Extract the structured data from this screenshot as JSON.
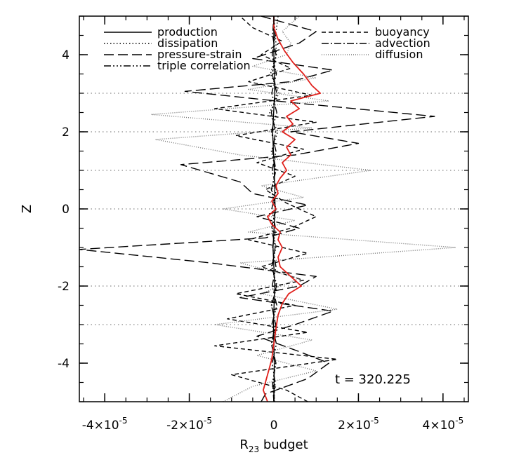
{
  "chart_data": {
    "type": "line",
    "xlabel": "R",
    "xlabel_sub": "23",
    "xlabel_rest": " budget",
    "ylabel": "Z",
    "xlim": [
      -4.6e-05,
      4.6e-05
    ],
    "ylim": [
      -5,
      5
    ],
    "x_ticks": [
      {
        "value": -4e-05,
        "base": "-4×10",
        "exp": "-5"
      },
      {
        "value": -2e-05,
        "base": "-2×10",
        "exp": "-5"
      },
      {
        "value": 0,
        "base": "0",
        "exp": ""
      },
      {
        "value": 2e-05,
        "base": "2×10",
        "exp": "-5"
      },
      {
        "value": 4e-05,
        "base": "4×10",
        "exp": "-5"
      }
    ],
    "y_ticks": [
      -4,
      -2,
      0,
      2,
      4
    ],
    "annotation": "t = 320.225",
    "reference_lines_z": [
      3,
      2,
      1,
      0,
      -2,
      -3
    ],
    "legend_position": "top",
    "series": [
      {
        "name": "production",
        "color": "#000000",
        "dash": "",
        "z": [
          -5,
          -4,
          -3,
          -2,
          -1,
          0,
          1,
          2,
          3,
          4,
          5
        ],
        "value": [
          0.0,
          1e-07,
          -1e-07,
          2e-07,
          -2e-07,
          3e-07,
          1e-07,
          -3e-07,
          2e-07,
          0.0,
          0.0
        ]
      },
      {
        "name": "dissipation",
        "color": "#000000",
        "dash": "1.5,3",
        "z": [
          -5,
          -4.5,
          -4,
          -3.5,
          -3,
          -2.5,
          -2,
          -1.5,
          -1,
          -0.5,
          0,
          0.5,
          1,
          1.5,
          2,
          2.5,
          3,
          3.5,
          4,
          4.5,
          5
        ],
        "value": [
          2e-07,
          -2e-07,
          4e-07,
          -4e-07,
          5e-07,
          -6e-07,
          8e-07,
          -6e-07,
          5e-07,
          -3e-07,
          5e-07,
          -5e-07,
          4e-07,
          -6e-07,
          9e-07,
          -1e-06,
          1.2e-06,
          -8e-07,
          6e-07,
          4e-07,
          1e-06
        ]
      },
      {
        "name": "pressure-strain",
        "color": "#000000",
        "dash": "14,6",
        "z": [
          -5,
          -4.8,
          -4.4,
          -4.0,
          -3.7,
          -3.3,
          -3.0,
          -2.65,
          -2.3,
          -2.0,
          -1.75,
          -1.4,
          -1.05,
          -0.75,
          -0.5,
          -0.2,
          0.1,
          0.4,
          0.7,
          1.15,
          1.4,
          1.7,
          2.0,
          2.4,
          2.75,
          3.05,
          3.3,
          3.6,
          3.9,
          4.3,
          4.6,
          5.0
        ],
        "value": [
          -3e-06,
          -2e-06,
          8e-06,
          1.3e-05,
          6e-06,
          -4e-06,
          5e-06,
          1.4e-05,
          -8e-06,
          6e-06,
          1e-05,
          -1.5e-05,
          -4.6e-05,
          -2e-06,
          6e-06,
          -4e-06,
          8e-06,
          -5e-06,
          -8e-06,
          -2.2e-05,
          5e-06,
          2e-05,
          4e-06,
          3.8e-05,
          5e-06,
          -2.1e-05,
          4e-06,
          1.4e-05,
          -5e-06,
          6e-06,
          1e-05,
          -3e-06
        ]
      },
      {
        "name": "triple correlation",
        "color": "#000000",
        "dash": "10,3,2,3,2,3,2,3",
        "z": [
          -5,
          -4.5,
          -4,
          -3.5,
          -3,
          -2.5,
          -2,
          -1.5,
          -1,
          -0.5,
          0,
          0.5,
          1,
          1.5,
          2,
          2.5,
          3,
          3.5,
          4,
          4.5,
          5
        ],
        "value": [
          0.0,
          3e-07,
          -4e-07,
          6e-07,
          -5e-07,
          7e-07,
          -4e-07,
          5e-07,
          -3e-07,
          4e-07,
          -5e-07,
          6e-07,
          -4e-07,
          5e-07,
          -6e-07,
          7e-07,
          -5e-07,
          6e-07,
          -4e-07,
          3e-07,
          0.0
        ]
      },
      {
        "name": "buoyancy",
        "color": "#000000",
        "dash": "6,4",
        "z": [
          -5,
          -4.7,
          -4.3,
          -3.9,
          -3.55,
          -3.2,
          -2.85,
          -2.5,
          -2.2,
          -1.85,
          -1.5,
          -1.15,
          -0.8,
          -0.5,
          -0.2,
          0.15,
          0.5,
          0.85,
          1.2,
          1.55,
          1.9,
          2.25,
          2.6,
          2.95,
          3.3,
          3.65,
          4.0,
          4.35,
          4.7,
          5.0
        ],
        "value": [
          8e-06,
          3e-06,
          -1e-05,
          1.5e-05,
          -1.4e-05,
          8e-06,
          -1.1e-05,
          5e-06,
          -9e-06,
          7e-06,
          -3e-06,
          8e-06,
          -6e-06,
          4e-06,
          1e-05,
          3e-06,
          -2e-06,
          5e-06,
          -4e-06,
          7e-06,
          -9e-06,
          1e-05,
          -1.4e-05,
          9e-06,
          -6e-06,
          4e-06,
          -3e-06,
          2e-06,
          -5e-06,
          -8e-06
        ]
      },
      {
        "name": "advection",
        "color": "#000000",
        "dash": "10,3,2,3",
        "z": [
          -5,
          -4.5,
          -4,
          -3.5,
          -3,
          -2.5,
          -2,
          -1.5,
          -1,
          -0.5,
          0,
          0.5,
          1,
          1.5,
          2,
          2.5,
          3,
          3.5,
          4,
          4.5,
          5
        ],
        "value": [
          0.0,
          -3e-07,
          5e-07,
          -6e-07,
          4e-07,
          -5e-07,
          6e-07,
          -4e-07,
          3e-07,
          -5e-07,
          4e-07,
          -6e-07,
          5e-07,
          -3e-07,
          4e-07,
          -6e-07,
          7e-07,
          -4e-07,
          5e-07,
          -3e-07,
          0.0
        ]
      },
      {
        "name": "diffusion",
        "color": "#777777",
        "dash": "1,2",
        "z": [
          -5,
          -4.6,
          -4.2,
          -3.8,
          -3.4,
          -3.0,
          -2.6,
          -2.2,
          -1.8,
          -1.4,
          -1.0,
          -0.6,
          -0.3,
          0.0,
          0.3,
          0.6,
          1.0,
          1.4,
          1.8,
          2.1,
          2.45,
          2.8,
          3.1,
          3.4,
          3.7,
          4.0,
          4.3,
          4.6,
          5.0
        ],
        "value": [
          -1.2e-05,
          -5e-06,
          1e-05,
          -4e-06,
          9e-06,
          -1.4e-05,
          1.5e-05,
          -3e-06,
          6e-06,
          -8e-06,
          4.3e-05,
          -6e-06,
          5e-06,
          -1.2e-05,
          7e-06,
          -3e-06,
          2.3e-05,
          -8e-06,
          -2.8e-05,
          9e-06,
          -2.9e-05,
          1.3e-05,
          -6e-06,
          1e-05,
          -5e-06,
          3e-06,
          4e-06,
          2e-06,
          6e-06
        ]
      },
      {
        "name": "",
        "color": "#e0201b",
        "dash": "",
        "z": [
          -5,
          -4.7,
          -4.3,
          -3.9,
          -3.5,
          -3.1,
          -2.75,
          -2.45,
          -2.2,
          -2.0,
          -1.75,
          -1.5,
          -1.25,
          -1.0,
          -0.8,
          -0.6,
          -0.4,
          -0.2,
          0.0,
          0.2,
          0.4,
          0.6,
          0.8,
          1.0,
          1.2,
          1.4,
          1.6,
          1.8,
          2.0,
          2.2,
          2.4,
          2.6,
          2.8,
          3.0,
          3.2,
          3.5,
          3.8,
          4.1,
          4.4,
          4.7,
          5.0
        ],
        "value": [
          -1.5e-06,
          -2.5e-06,
          -1.5e-06,
          -5e-07,
          0.0,
          5e-07,
          1e-06,
          2e-06,
          3.5e-06,
          6.5e-06,
          4e-06,
          1.5e-06,
          1e-06,
          2e-06,
          1e-06,
          1.5e-06,
          -5e-07,
          -1.5e-06,
          5e-07,
          -5e-07,
          1e-06,
          5e-07,
          1.5e-06,
          3e-06,
          2e-06,
          4e-06,
          3e-06,
          5e-06,
          2e-06,
          4.5e-06,
          3e-06,
          6e-06,
          4e-06,
          1.1e-05,
          9e-06,
          7e-06,
          4.5e-06,
          2.5e-06,
          1e-06,
          0.0,
          0.0
        ]
      }
    ]
  }
}
